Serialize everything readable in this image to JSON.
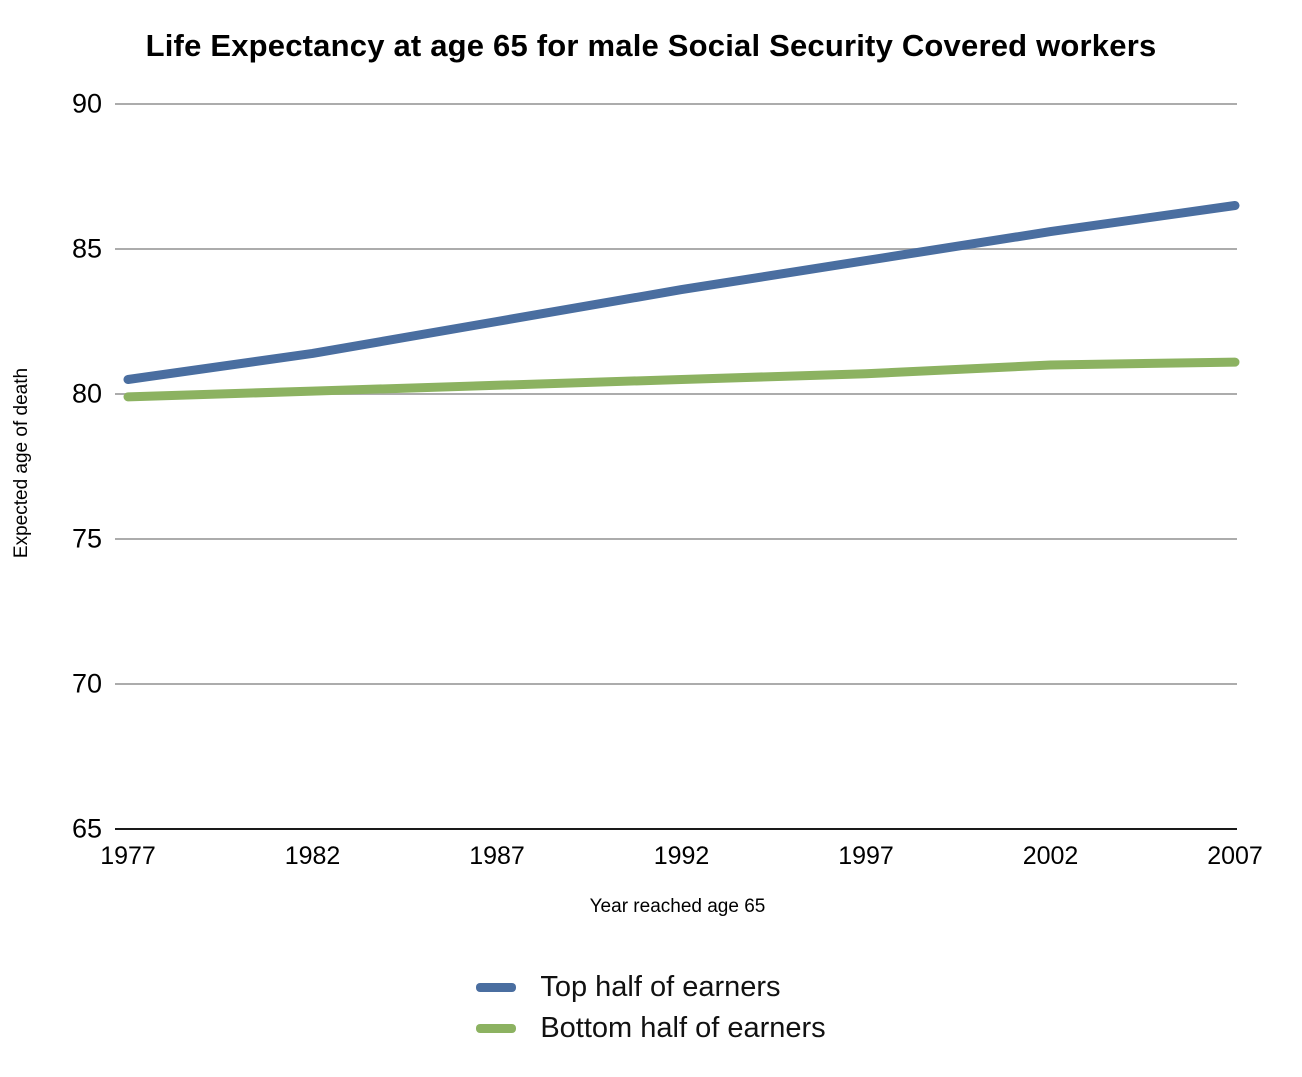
{
  "page": {
    "background": "#ffffff"
  },
  "chart_data": {
    "type": "line",
    "title": "Life Expectancy at age 65 for male Social Security Covered workers",
    "xlabel": "Year reached age 65",
    "ylabel": "Expected age of death",
    "x": [
      1977,
      1982,
      1987,
      1992,
      1997,
      2002,
      2007
    ],
    "xticks": [
      "1977",
      "1982",
      "1987",
      "1992",
      "1997",
      "2002",
      "2007"
    ],
    "yticks": [
      65,
      70,
      75,
      80,
      85,
      90
    ],
    "xlim": [
      1977,
      2007
    ],
    "ylim": [
      65,
      90
    ],
    "grid": true,
    "legend_position": "bottom",
    "colors": {
      "grid": "#ACACAC",
      "axis": "#1A1A1A",
      "text": "#000000",
      "background": "#FFFFFF"
    },
    "series": [
      {
        "name": "Top half of earners",
        "color": "#4A6EA0",
        "values": [
          80.5,
          81.4,
          82.5,
          83.6,
          84.6,
          85.6,
          86.5
        ]
      },
      {
        "name": "Bottom half of earners",
        "color": "#8CB261",
        "values": [
          79.9,
          80.1,
          80.3,
          80.5,
          80.7,
          81.0,
          81.1
        ]
      }
    ]
  }
}
